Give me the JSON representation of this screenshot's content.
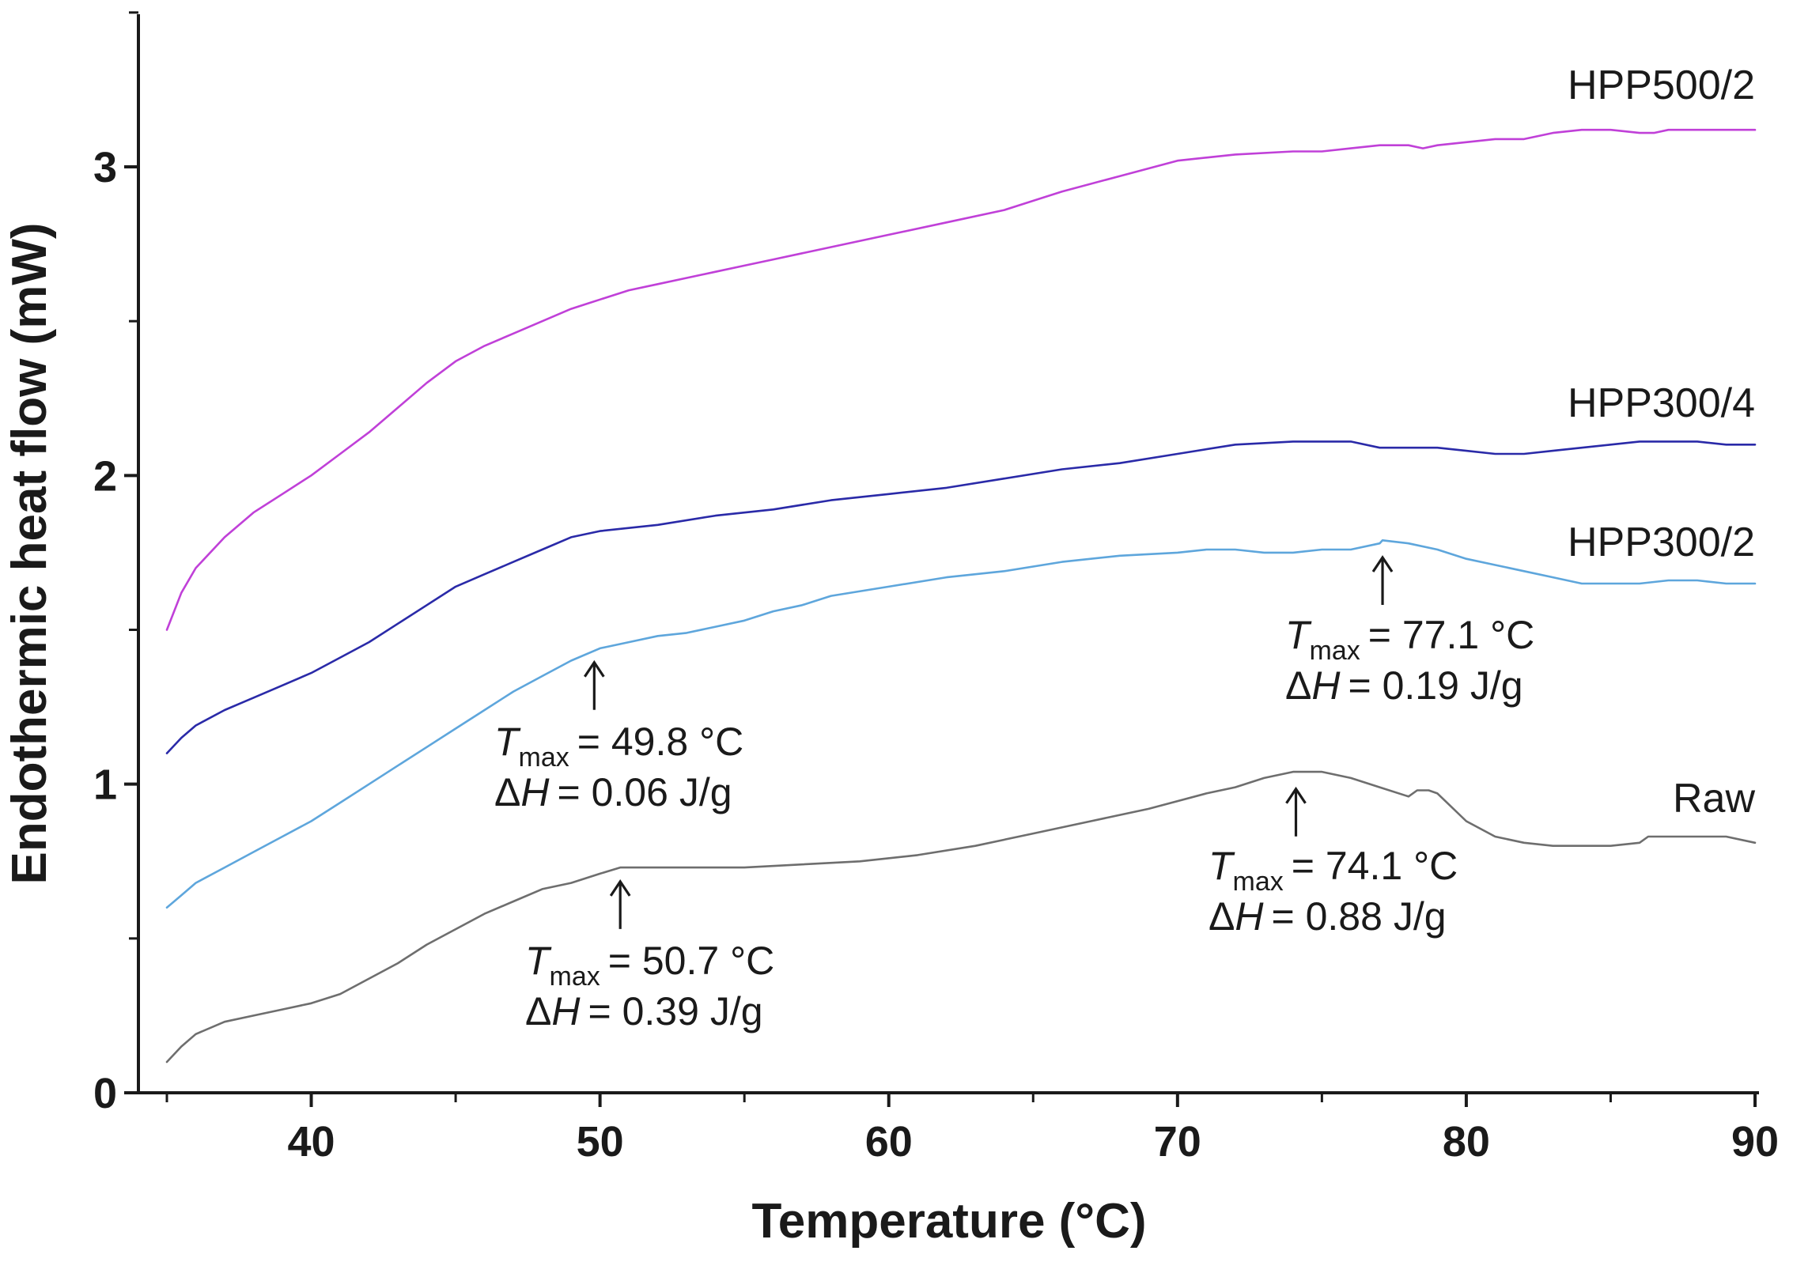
{
  "chart_data": {
    "type": "line",
    "xlabel": "Temperature (°C)",
    "ylabel": "Endothermic heat flow (mW)",
    "xlim": [
      35,
      90
    ],
    "ylim": [
      0,
      3.5
    ],
    "x_ticks": [
      40,
      50,
      60,
      70,
      80,
      90
    ],
    "y_ticks": [
      0,
      1,
      2,
      3
    ],
    "x_tick_labels": [
      "40",
      "50",
      "60",
      "70",
      "80",
      "90"
    ],
    "y_tick_labels": [
      "0",
      "1",
      "2",
      "3"
    ],
    "grid": false,
    "series": [
      {
        "name": "HPP500/2",
        "color": "#c040d8",
        "points": [
          [
            35,
            1.5
          ],
          [
            35.5,
            1.62
          ],
          [
            36,
            1.7
          ],
          [
            37,
            1.8
          ],
          [
            38,
            1.88
          ],
          [
            39,
            1.94
          ],
          [
            40,
            2.0
          ],
          [
            41,
            2.07
          ],
          [
            42,
            2.14
          ],
          [
            43,
            2.22
          ],
          [
            44,
            2.3
          ],
          [
            45,
            2.37
          ],
          [
            46,
            2.42
          ],
          [
            47,
            2.46
          ],
          [
            48,
            2.5
          ],
          [
            49,
            2.54
          ],
          [
            50,
            2.57
          ],
          [
            51,
            2.6
          ],
          [
            52,
            2.62
          ],
          [
            53,
            2.64
          ],
          [
            54,
            2.66
          ],
          [
            55,
            2.68
          ],
          [
            56,
            2.7
          ],
          [
            57,
            2.72
          ],
          [
            58,
            2.74
          ],
          [
            60,
            2.78
          ],
          [
            62,
            2.82
          ],
          [
            64,
            2.86
          ],
          [
            66,
            2.92
          ],
          [
            68,
            2.97
          ],
          [
            70,
            3.02
          ],
          [
            71,
            3.03
          ],
          [
            72,
            3.04
          ],
          [
            74,
            3.05
          ],
          [
            75,
            3.05
          ],
          [
            76,
            3.06
          ],
          [
            77,
            3.07
          ],
          [
            78,
            3.07
          ],
          [
            78.5,
            3.06
          ],
          [
            79,
            3.07
          ],
          [
            80,
            3.08
          ],
          [
            81,
            3.09
          ],
          [
            82,
            3.09
          ],
          [
            83,
            3.11
          ],
          [
            84,
            3.12
          ],
          [
            85,
            3.12
          ],
          [
            86,
            3.11
          ],
          [
            86.5,
            3.11
          ],
          [
            87,
            3.12
          ],
          [
            88,
            3.12
          ],
          [
            89,
            3.12
          ],
          [
            90,
            3.12
          ]
        ]
      },
      {
        "name": "HPP300/4",
        "color": "#2a2aa8",
        "points": [
          [
            35,
            1.1
          ],
          [
            35.5,
            1.15
          ],
          [
            36,
            1.19
          ],
          [
            37,
            1.24
          ],
          [
            38,
            1.28
          ],
          [
            39,
            1.32
          ],
          [
            40,
            1.36
          ],
          [
            41,
            1.41
          ],
          [
            42,
            1.46
          ],
          [
            43,
            1.52
          ],
          [
            44,
            1.58
          ],
          [
            45,
            1.64
          ],
          [
            46,
            1.68
          ],
          [
            47,
            1.72
          ],
          [
            48,
            1.76
          ],
          [
            49,
            1.8
          ],
          [
            50,
            1.82
          ],
          [
            52,
            1.84
          ],
          [
            54,
            1.87
          ],
          [
            56,
            1.89
          ],
          [
            58,
            1.92
          ],
          [
            60,
            1.94
          ],
          [
            62,
            1.96
          ],
          [
            64,
            1.99
          ],
          [
            66,
            2.02
          ],
          [
            68,
            2.04
          ],
          [
            70,
            2.07
          ],
          [
            72,
            2.1
          ],
          [
            74,
            2.11
          ],
          [
            75,
            2.11
          ],
          [
            76,
            2.11
          ],
          [
            77,
            2.09
          ],
          [
            78,
            2.09
          ],
          [
            79,
            2.09
          ],
          [
            80,
            2.08
          ],
          [
            81,
            2.07
          ],
          [
            82,
            2.07
          ],
          [
            83,
            2.08
          ],
          [
            84,
            2.09
          ],
          [
            85,
            2.1
          ],
          [
            86,
            2.11
          ],
          [
            87,
            2.11
          ],
          [
            88,
            2.11
          ],
          [
            89,
            2.1
          ],
          [
            90,
            2.1
          ]
        ]
      },
      {
        "name": "HPP300/2",
        "color": "#5ea6dc",
        "points": [
          [
            35,
            0.6
          ],
          [
            35.5,
            0.64
          ],
          [
            36,
            0.68
          ],
          [
            37,
            0.73
          ],
          [
            38,
            0.78
          ],
          [
            39,
            0.83
          ],
          [
            40,
            0.88
          ],
          [
            41,
            0.94
          ],
          [
            42,
            1.0
          ],
          [
            43,
            1.06
          ],
          [
            44,
            1.12
          ],
          [
            45,
            1.18
          ],
          [
            46,
            1.24
          ],
          [
            47,
            1.3
          ],
          [
            48,
            1.35
          ],
          [
            49,
            1.4
          ],
          [
            50,
            1.44
          ],
          [
            51,
            1.46
          ],
          [
            52,
            1.48
          ],
          [
            53,
            1.49
          ],
          [
            54,
            1.51
          ],
          [
            55,
            1.53
          ],
          [
            56,
            1.56
          ],
          [
            57,
            1.58
          ],
          [
            58,
            1.61
          ],
          [
            60,
            1.64
          ],
          [
            62,
            1.67
          ],
          [
            64,
            1.69
          ],
          [
            66,
            1.72
          ],
          [
            68,
            1.74
          ],
          [
            70,
            1.75
          ],
          [
            71,
            1.76
          ],
          [
            72,
            1.76
          ],
          [
            73,
            1.75
          ],
          [
            74,
            1.75
          ],
          [
            75,
            1.76
          ],
          [
            75.5,
            1.76
          ],
          [
            76,
            1.76
          ],
          [
            77,
            1.78
          ],
          [
            77.1,
            1.79
          ],
          [
            78,
            1.78
          ],
          [
            79,
            1.76
          ],
          [
            80,
            1.73
          ],
          [
            81,
            1.71
          ],
          [
            82,
            1.69
          ],
          [
            83,
            1.67
          ],
          [
            84,
            1.65
          ],
          [
            85,
            1.65
          ],
          [
            86,
            1.65
          ],
          [
            87,
            1.66
          ],
          [
            88,
            1.66
          ],
          [
            89,
            1.65
          ],
          [
            90,
            1.65
          ]
        ]
      },
      {
        "name": "Raw",
        "color": "#6e6e6e",
        "points": [
          [
            35,
            0.1
          ],
          [
            35.5,
            0.15
          ],
          [
            36,
            0.19
          ],
          [
            37,
            0.23
          ],
          [
            38,
            0.25
          ],
          [
            39,
            0.27
          ],
          [
            40,
            0.29
          ],
          [
            41,
            0.32
          ],
          [
            42,
            0.37
          ],
          [
            43,
            0.42
          ],
          [
            44,
            0.48
          ],
          [
            45,
            0.53
          ],
          [
            46,
            0.58
          ],
          [
            47,
            0.62
          ],
          [
            48,
            0.66
          ],
          [
            49,
            0.68
          ],
          [
            50,
            0.71
          ],
          [
            50.7,
            0.73
          ],
          [
            51,
            0.73
          ],
          [
            53,
            0.73
          ],
          [
            55,
            0.73
          ],
          [
            57,
            0.74
          ],
          [
            59,
            0.75
          ],
          [
            61,
            0.77
          ],
          [
            63,
            0.8
          ],
          [
            65,
            0.84
          ],
          [
            67,
            0.88
          ],
          [
            69,
            0.92
          ],
          [
            71,
            0.97
          ],
          [
            72,
            0.99
          ],
          [
            73,
            1.02
          ],
          [
            74,
            1.04
          ],
          [
            74.5,
            1.04
          ],
          [
            75,
            1.04
          ],
          [
            76,
            1.02
          ],
          [
            77,
            0.99
          ],
          [
            78,
            0.96
          ],
          [
            78.3,
            0.98
          ],
          [
            78.7,
            0.98
          ],
          [
            79,
            0.97
          ],
          [
            80,
            0.88
          ],
          [
            81,
            0.83
          ],
          [
            82,
            0.81
          ],
          [
            83,
            0.8
          ],
          [
            84,
            0.8
          ],
          [
            85,
            0.8
          ],
          [
            86,
            0.81
          ],
          [
            86.3,
            0.83
          ],
          [
            87,
            0.83
          ],
          [
            88,
            0.83
          ],
          [
            89,
            0.83
          ],
          [
            90,
            0.81
          ]
        ]
      }
    ],
    "series_labels": [
      {
        "text": "HPP500/2",
        "x": 90,
        "y": 3.22
      },
      {
        "text": "HPP300/4",
        "x": 90,
        "y": 2.19
      },
      {
        "text": "HPP300/2",
        "x": 90,
        "y": 1.74
      },
      {
        "text": "Raw",
        "x": 90,
        "y": 0.91
      }
    ],
    "annotations": [
      {
        "tmax_value": "= 77.1 °C",
        "dh_value": "= 0.19 J/g",
        "peak_x": 77.1
      },
      {
        "tmax_value": "= 49.8 °C",
        "dh_value": "= 0.06 J/g",
        "peak_x": 49.8
      },
      {
        "tmax_value": "= 74.1 °C",
        "dh_value": "= 0.88 J/g",
        "peak_x": 74.1
      },
      {
        "tmax_value": "= 50.7 °C",
        "dh_value": "= 0.39 J/g",
        "peak_x": 50.7
      }
    ],
    "annotation_symbols": {
      "t": "T",
      "max": "max",
      "delta": "Δ",
      "h": "H"
    }
  }
}
